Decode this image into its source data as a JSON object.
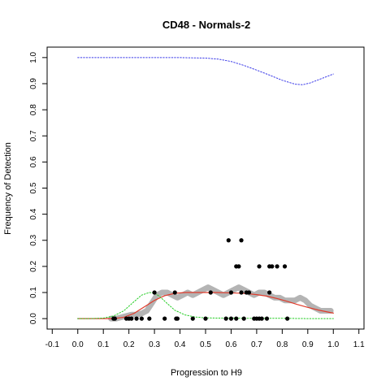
{
  "chart_data": {
    "type": "scatter",
    "title": "CD48 - Normals-2",
    "xlabel": "Progression to H9",
    "ylabel": "Frequency of Detection",
    "xlim": [
      -0.12,
      1.12
    ],
    "ylim": [
      -0.04,
      1.04
    ],
    "xticks": [
      -0.1,
      0.0,
      0.1,
      0.2,
      0.3,
      0.4,
      0.5,
      0.6,
      0.7,
      0.8,
      0.9,
      1.0,
      1.1
    ],
    "xtick_labels": [
      "-0.1",
      "0.0",
      "0.1",
      "0.2",
      "0.3",
      "0.4",
      "0.5",
      "0.6",
      "0.7",
      "0.8",
      "0.9",
      "1.0",
      "1.1"
    ],
    "yticks": [
      0.0,
      0.1,
      0.2,
      0.3,
      0.4,
      0.5,
      0.6,
      0.7,
      0.8,
      0.9,
      1.0
    ],
    "ytick_labels": [
      "0.0",
      "0.1",
      "0.2",
      "0.3",
      "0.4",
      "0.5",
      "0.6",
      "0.7",
      "0.8",
      "0.9",
      "1.0"
    ],
    "grid": false,
    "colors": {
      "points": "#000000",
      "running_mean": "#b4b4b4",
      "fit": "#e03a2a",
      "density": "#22cc22",
      "upper_curve": "#3a3ae8"
    },
    "points": {
      "x": [
        0.14,
        0.145,
        0.19,
        0.2,
        0.21,
        0.23,
        0.25,
        0.28,
        0.3,
        0.34,
        0.38,
        0.385,
        0.39,
        0.45,
        0.5,
        0.52,
        0.58,
        0.59,
        0.6,
        0.6,
        0.62,
        0.62,
        0.63,
        0.64,
        0.64,
        0.65,
        0.66,
        0.67,
        0.69,
        0.7,
        0.71,
        0.71,
        0.72,
        0.74,
        0.75,
        0.75,
        0.76,
        0.78,
        0.81,
        0.82
      ],
      "y": [
        0.0,
        0.0,
        0.0,
        0.0,
        0.0,
        0.0,
        0.0,
        0.0,
        0.1,
        0.0,
        0.1,
        0.0,
        0.0,
        0.0,
        0.0,
        0.1,
        0.0,
        0.3,
        0.0,
        0.1,
        0.0,
        0.2,
        0.2,
        0.3,
        0.1,
        0.0,
        0.1,
        0.1,
        0.0,
        0.0,
        0.2,
        0.0,
        0.0,
        0.0,
        0.1,
        0.2,
        0.2,
        0.2,
        0.2,
        0.0
      ]
    },
    "series": [
      {
        "style": "grey-thick",
        "x": [
          0.13,
          0.15,
          0.17,
          0.19,
          0.21,
          0.23,
          0.25,
          0.27,
          0.29,
          0.31,
          0.33,
          0.35,
          0.37,
          0.39,
          0.41,
          0.43,
          0.45,
          0.47,
          0.49,
          0.51,
          0.53,
          0.55,
          0.57,
          0.59,
          0.61,
          0.63,
          0.65,
          0.67,
          0.69,
          0.71,
          0.73,
          0.75,
          0.77,
          0.79,
          0.81,
          0.83,
          0.85,
          0.87,
          0.89,
          0.91,
          0.93,
          0.95,
          0.97,
          0.99
        ],
        "y": [
          0.0,
          0.0,
          0.005,
          0.01,
          0.015,
          0.015,
          0.02,
          0.03,
          0.06,
          0.09,
          0.1,
          0.1,
          0.09,
          0.08,
          0.09,
          0.1,
          0.09,
          0.1,
          0.11,
          0.12,
          0.11,
          0.1,
          0.09,
          0.1,
          0.11,
          0.12,
          0.11,
          0.1,
          0.09,
          0.1,
          0.1,
          0.09,
          0.08,
          0.08,
          0.07,
          0.07,
          0.07,
          0.08,
          0.07,
          0.05,
          0.04,
          0.03,
          0.03,
          0.03
        ]
      },
      {
        "style": "red",
        "x": [
          0.0,
          0.05,
          0.1,
          0.14,
          0.18,
          0.22,
          0.26,
          0.3,
          0.34,
          0.38,
          0.42,
          0.46,
          0.5,
          0.54,
          0.58,
          0.62,
          0.66,
          0.7,
          0.74,
          0.78,
          0.82,
          0.86,
          0.9,
          0.94,
          0.98,
          1.0
        ],
        "y": [
          0.0,
          0.0,
          0.0,
          0.0,
          0.005,
          0.02,
          0.045,
          0.07,
          0.088,
          0.097,
          0.1,
          0.1,
          0.1,
          0.1,
          0.099,
          0.098,
          0.096,
          0.092,
          0.086,
          0.077,
          0.066,
          0.054,
          0.043,
          0.033,
          0.025,
          0.021
        ]
      },
      {
        "style": "green-dotted",
        "x": [
          0.0,
          0.05,
          0.1,
          0.14,
          0.18,
          0.22,
          0.25,
          0.28,
          0.3,
          0.32,
          0.35,
          0.38,
          0.42,
          0.46,
          0.5,
          0.55,
          0.6,
          0.7,
          0.8,
          0.9,
          1.0
        ],
        "y": [
          0.0,
          0.0,
          0.002,
          0.01,
          0.03,
          0.065,
          0.09,
          0.1,
          0.098,
          0.085,
          0.058,
          0.032,
          0.014,
          0.006,
          0.003,
          0.002,
          0.002,
          0.001,
          0.001,
          0.0,
          0.0
        ]
      },
      {
        "style": "blue-dotted",
        "x": [
          0.0,
          0.1,
          0.2,
          0.3,
          0.4,
          0.5,
          0.55,
          0.6,
          0.65,
          0.7,
          0.75,
          0.8,
          0.85,
          0.88,
          0.91,
          0.95,
          1.0
        ],
        "y": [
          1.0,
          1.0,
          1.0,
          1.0,
          1.0,
          0.998,
          0.994,
          0.985,
          0.97,
          0.952,
          0.933,
          0.913,
          0.898,
          0.896,
          0.903,
          0.918,
          0.937
        ]
      }
    ]
  }
}
